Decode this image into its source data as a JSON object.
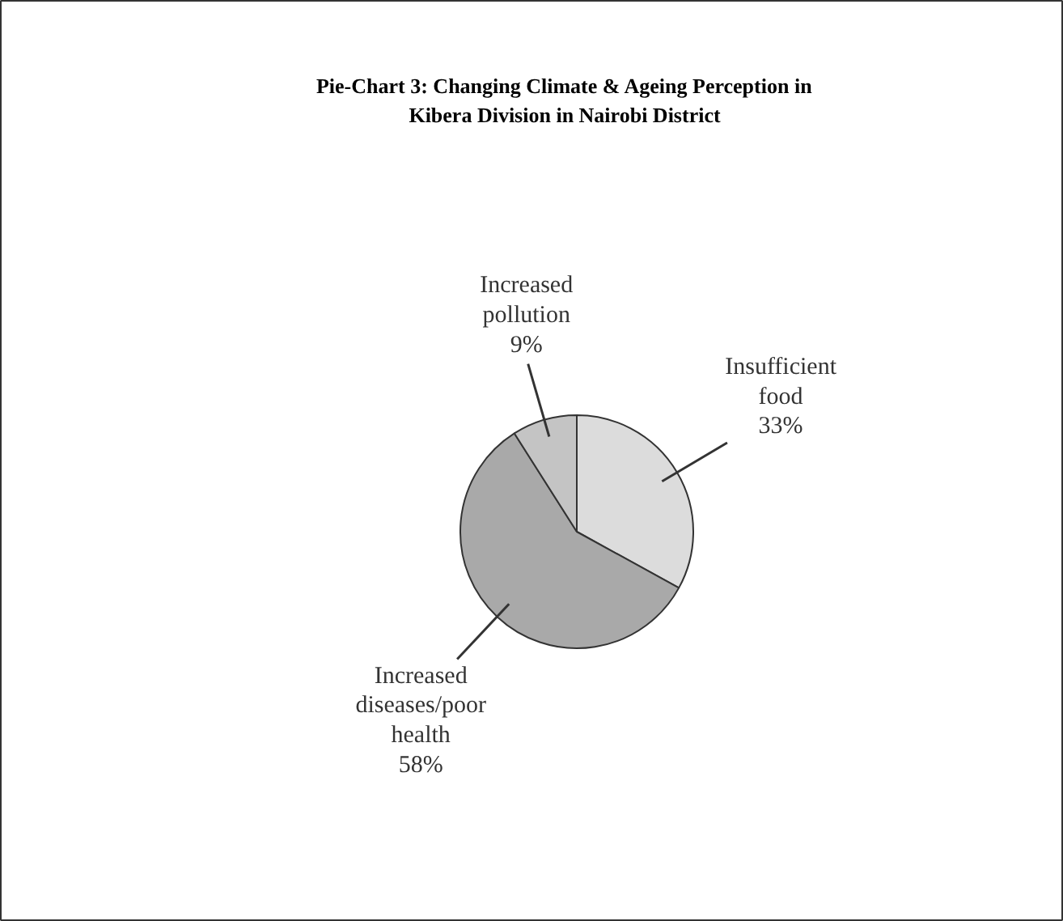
{
  "chart_data": {
    "type": "pie",
    "title": "Pie-Chart 3: Changing Climate & Ageing Perception in\nKibera Division in Nairobi District",
    "categories": [
      "Insufficient\nfood",
      "Increased\ndiseases/poor\nhealth",
      "Increased\npollution"
    ],
    "values": [
      33,
      58,
      9
    ],
    "value_labels": [
      "33%",
      "58%",
      "9%"
    ],
    "colors": [
      "#dcdcdc",
      "#a9a9a9",
      "#c4c4c4"
    ]
  }
}
